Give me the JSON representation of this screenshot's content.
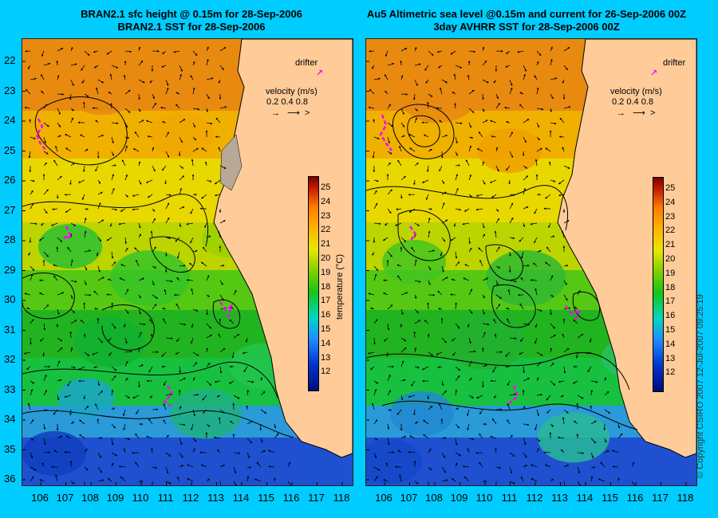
{
  "left_panel": {
    "title_line1": "BRAN2.1 sfc height @ 0.15m for 28-Sep-2006",
    "title_line2": "BRAN2.1 SST for 28-Sep-2006"
  },
  "right_panel": {
    "title_line1": "Au5 Altimetric sea level  @0.15m and current for 26-Sep-2006 00Z",
    "title_line2": "3day AVHRR SST for 28-Sep-2006 00Z"
  },
  "legend": {
    "drifter_label": "drifter",
    "velocity_label": "velocity (m/s)",
    "velocity_scale": "0.2  0.4  0.8",
    "colorbar_label": "temperature (°C)",
    "colorbar_ticks": [
      "25",
      "24",
      "23",
      "22",
      "21",
      "20",
      "19",
      "18",
      "17",
      "16",
      "15",
      "14",
      "13",
      "12"
    ]
  },
  "axes": {
    "y_ticks": [
      "22",
      "23",
      "24",
      "25",
      "26",
      "27",
      "28",
      "29",
      "30",
      "31",
      "32",
      "33",
      "34",
      "35",
      "36"
    ],
    "x_ticks": [
      "106",
      "107",
      "108",
      "109",
      "110",
      "111",
      "112",
      "113",
      "114",
      "115",
      "116",
      "117",
      "118"
    ]
  },
  "copyright": "© Copyright CSIRO 2007  12-Jul-2007 09:25:19",
  "colors": {
    "background": "#00ccff",
    "land": "#ffcc99",
    "drifter": "#ff00ff"
  }
}
